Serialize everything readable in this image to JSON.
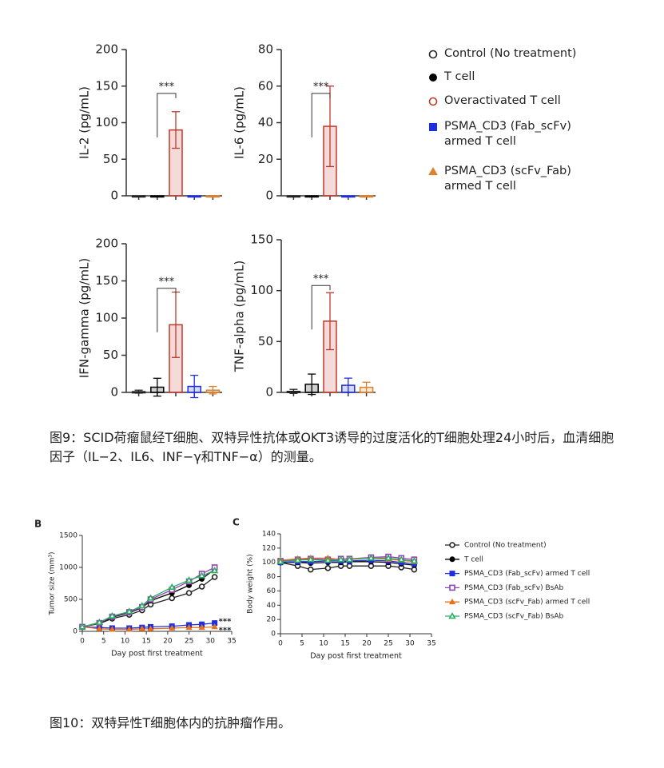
{
  "chart_data": [
    {
      "type": "bar",
      "ylabel": "IL-2 (pg/mL)",
      "categories": [
        null,
        null,
        null,
        null,
        null
      ],
      "values": [
        0,
        0,
        90,
        0,
        0
      ],
      "errors": [
        0,
        0,
        25,
        0,
        0
      ],
      "colors": [
        "#222222",
        "#000000",
        "#c0392b",
        "#1f2ee0",
        "#d9822b"
      ],
      "ylim": [
        0,
        200
      ],
      "yticks": [
        0,
        50,
        100,
        150,
        200
      ],
      "annotation": "***",
      "legend": [
        {
          "name": "Control (No treatment)",
          "color": "#222222",
          "marker": "open-circle"
        },
        {
          "name": "T cell",
          "color": "#000000",
          "marker": "circle"
        },
        {
          "name": "Overactivated T cell",
          "color": "#c0392b",
          "marker": "open-circle"
        },
        {
          "name": "PSMA_CD3 (Fab_scFv) armed T cell",
          "color": "#1f2ee0",
          "marker": "square"
        },
        {
          "name": "PSMA_CD3 (scFv_Fab) armed T cell",
          "color": "#d9822b",
          "marker": "triangle"
        }
      ]
    },
    {
      "type": "bar",
      "ylabel": "IL-6 (pg/mL)",
      "categories": [
        null,
        null,
        null,
        null,
        null
      ],
      "values": [
        0,
        0,
        38,
        0,
        0
      ],
      "errors": [
        0,
        0,
        22,
        0,
        0
      ],
      "colors": [
        "#222222",
        "#000000",
        "#c0392b",
        "#1f2ee0",
        "#d9822b"
      ],
      "ylim": [
        0,
        80
      ],
      "yticks": [
        0,
        20,
        40,
        60,
        80
      ],
      "annotation": "***"
    },
    {
      "type": "bar",
      "ylabel": "IFN-gamma (pg/mL)",
      "categories": [
        null,
        null,
        null,
        null,
        null
      ],
      "values": [
        1,
        7,
        91,
        8,
        3
      ],
      "errors": [
        2,
        12,
        44,
        15,
        5
      ],
      "colors": [
        "#222222",
        "#000000",
        "#c0392b",
        "#1f2ee0",
        "#d9822b"
      ],
      "ylim": [
        0,
        200
      ],
      "yticks": [
        0,
        50,
        100,
        150,
        200
      ],
      "annotation": "***"
    },
    {
      "type": "bar",
      "ylabel": "TNF-alpha (pg/mL)",
      "categories": [
        null,
        null,
        null,
        null,
        null
      ],
      "values": [
        1,
        8,
        70,
        7,
        5
      ],
      "errors": [
        2,
        10,
        28,
        7,
        5
      ],
      "colors": [
        "#222222",
        "#000000",
        "#c0392b",
        "#1f2ee0",
        "#d9822b"
      ],
      "ylim": [
        0,
        150
      ],
      "yticks": [
        0,
        50,
        100,
        150
      ],
      "annotation": "***"
    },
    {
      "type": "line",
      "panel": "B",
      "xlabel": "Day post first treatment",
      "ylabel": "Tumor size (mm³)",
      "x": [
        0,
        4,
        7,
        11,
        14,
        16,
        21,
        25,
        28,
        31
      ],
      "xlim": [
        0,
        35
      ],
      "xticks": [
        0,
        5,
        10,
        15,
        20,
        25,
        30,
        35
      ],
      "ylim": [
        0,
        1500
      ],
      "yticks": [
        0,
        500,
        1000,
        1500
      ],
      "series": [
        {
          "name": "Control (No treatment)",
          "color": "#222222",
          "marker": "open-circle",
          "values": [
            70,
            120,
            200,
            260,
            330,
            420,
            520,
            600,
            700,
            850
          ]
        },
        {
          "name": "T cell",
          "color": "#000000",
          "marker": "circle",
          "values": [
            70,
            130,
            220,
            290,
            370,
            480,
            600,
            720,
            820,
            970
          ]
        },
        {
          "name": "PSMA_CD3 (Fab_scFv) armed T cell",
          "color": "#1f2ee0",
          "marker": "square",
          "values": [
            70,
            60,
            50,
            50,
            60,
            70,
            80,
            100,
            110,
            130
          ]
        },
        {
          "name": "PSMA_CD3 (Fab_scFv) BsAb",
          "color": "#8e44ad",
          "marker": "open-square",
          "values": [
            70,
            130,
            230,
            300,
            380,
            500,
            650,
            780,
            900,
            1000
          ]
        },
        {
          "name": "PSMA_CD3 (scFv_Fab) armed T cell",
          "color": "#e8731a",
          "marker": "triangle",
          "values": [
            70,
            40,
            30,
            30,
            40,
            40,
            50,
            60,
            60,
            70
          ]
        },
        {
          "name": "PSMA_CD3 (scFv_Fab) BsAb",
          "color": "#27ae60",
          "marker": "open-triangle",
          "values": [
            70,
            140,
            240,
            310,
            400,
            520,
            690,
            800,
            870,
            950
          ]
        }
      ],
      "annotations": [
        {
          "text": "***",
          "color": "#1f2ee0"
        },
        {
          "text": "***",
          "color": "#e8731a"
        }
      ]
    },
    {
      "type": "line",
      "panel": "C",
      "xlabel": "Day post first treatment",
      "ylabel": "Body weight (%)",
      "x": [
        0,
        4,
        7,
        11,
        14,
        16,
        21,
        25,
        28,
        31
      ],
      "xlim": [
        0,
        35
      ],
      "xticks": [
        0,
        5,
        10,
        15,
        20,
        25,
        30,
        35
      ],
      "ylim": [
        0,
        140
      ],
      "yticks": [
        0,
        20,
        40,
        60,
        80,
        100,
        120,
        140
      ],
      "series": [
        {
          "color": "#222222",
          "marker": "open-circle",
          "values": [
            100,
            95,
            90,
            92,
            95,
            95,
            95,
            95,
            93,
            90
          ]
        },
        {
          "color": "#000000",
          "marker": "circle",
          "values": [
            100,
            100,
            99,
            100,
            100,
            101,
            101,
            100,
            98,
            96
          ]
        },
        {
          "color": "#1f2ee0",
          "marker": "square",
          "values": [
            100,
            101,
            101,
            102,
            102,
            102,
            103,
            102,
            100,
            98
          ]
        },
        {
          "color": "#8e44ad",
          "marker": "open-square",
          "values": [
            102,
            104,
            105,
            104,
            105,
            105,
            107,
            108,
            106,
            104
          ]
        },
        {
          "color": "#e8731a",
          "marker": "triangle",
          "values": [
            103,
            105,
            106,
            106,
            104,
            105,
            106,
            104,
            103,
            101
          ]
        },
        {
          "color": "#27ae60",
          "marker": "open-triangle",
          "values": [
            101,
            103,
            104,
            103,
            104,
            104,
            106,
            106,
            104,
            102
          ]
        }
      ]
    }
  ],
  "captions": [
    "图9：SCID荷瘤鼠经T细胞、双特异性抗体或OKT3诱导的过度活化的T细胞处理24小时后，血清细胞因子（IL−2、IL6、INF−γ和TNF−α）的测量。",
    "图10：双特异性T细胞体内的抗肿瘤作用。"
  ]
}
